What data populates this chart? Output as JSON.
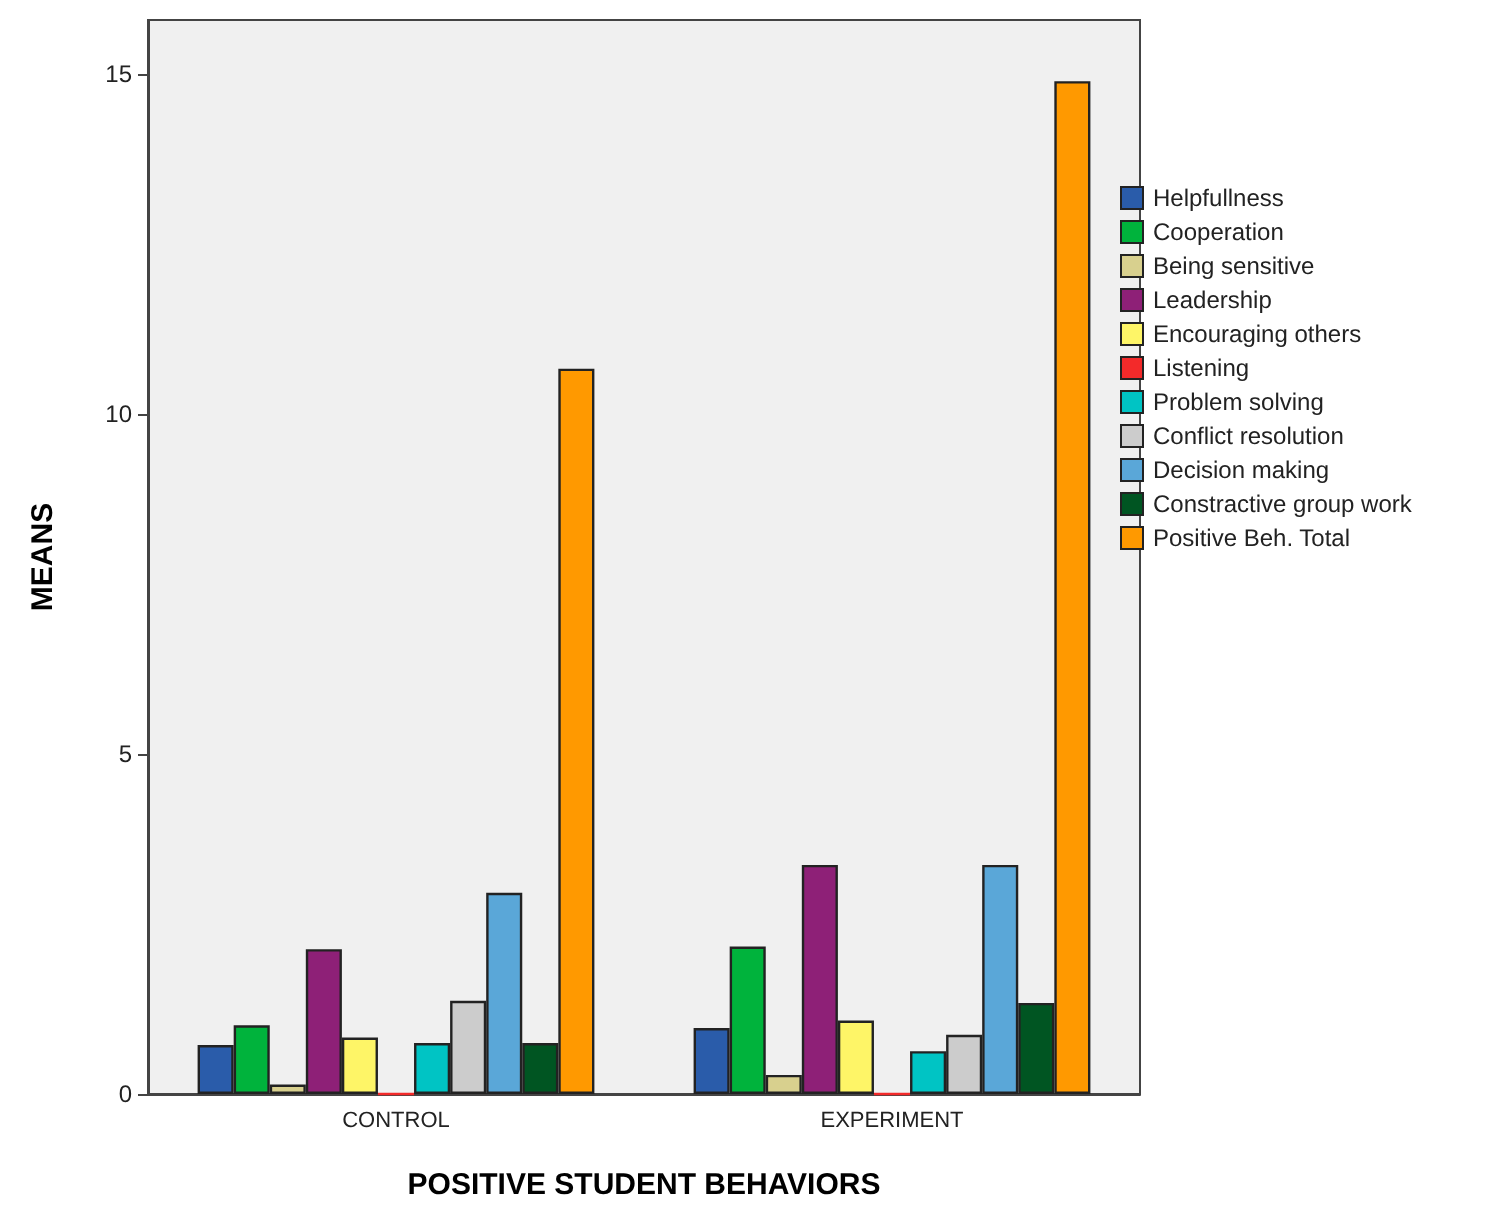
{
  "chart_data": {
    "type": "bar",
    "xlabel": "POSITIVE STUDENT BEHAVIORS",
    "ylabel": "MEANS",
    "categories": [
      "CONTROL",
      "EXPERIMENT"
    ],
    "series": [
      {
        "name": "Helpfullness",
        "color": "#2a5caa",
        "values": [
          0.72,
          0.97
        ]
      },
      {
        "name": "Cooperation",
        "color": "#00b33c",
        "values": [
          1.01,
          2.17
        ]
      },
      {
        "name": "Being sensitive",
        "color": "#d8d08e",
        "values": [
          0.14,
          0.28
        ]
      },
      {
        "name": "Leadership",
        "color": "#8e2077",
        "values": [
          2.13,
          3.37
        ]
      },
      {
        "name": "Encouraging others",
        "color": "#fef567",
        "values": [
          0.83,
          1.08
        ]
      },
      {
        "name": "Listening",
        "color": "#f32a2a",
        "values": [
          0,
          0
        ]
      },
      {
        "name": "Problem solving",
        "color": "#00c4c4",
        "values": [
          0.75,
          0.63
        ]
      },
      {
        "name": "Conflict resolution",
        "color": "#cccccc",
        "values": [
          1.37,
          0.87
        ]
      },
      {
        "name": "Decision making",
        "color": "#5aa7d8",
        "values": [
          2.96,
          3.37
        ]
      },
      {
        "name": "Constractive group work",
        "color": "#005522",
        "values": [
          0.75,
          1.34
        ]
      },
      {
        "name": "Positive Beh. Total",
        "color": "#ff9900",
        "values": [
          10.67,
          14.9
        ]
      }
    ],
    "ylim": [
      0,
      15.8
    ],
    "yticks": [
      0,
      5,
      10,
      15
    ],
    "grid": false,
    "legend": "right"
  }
}
